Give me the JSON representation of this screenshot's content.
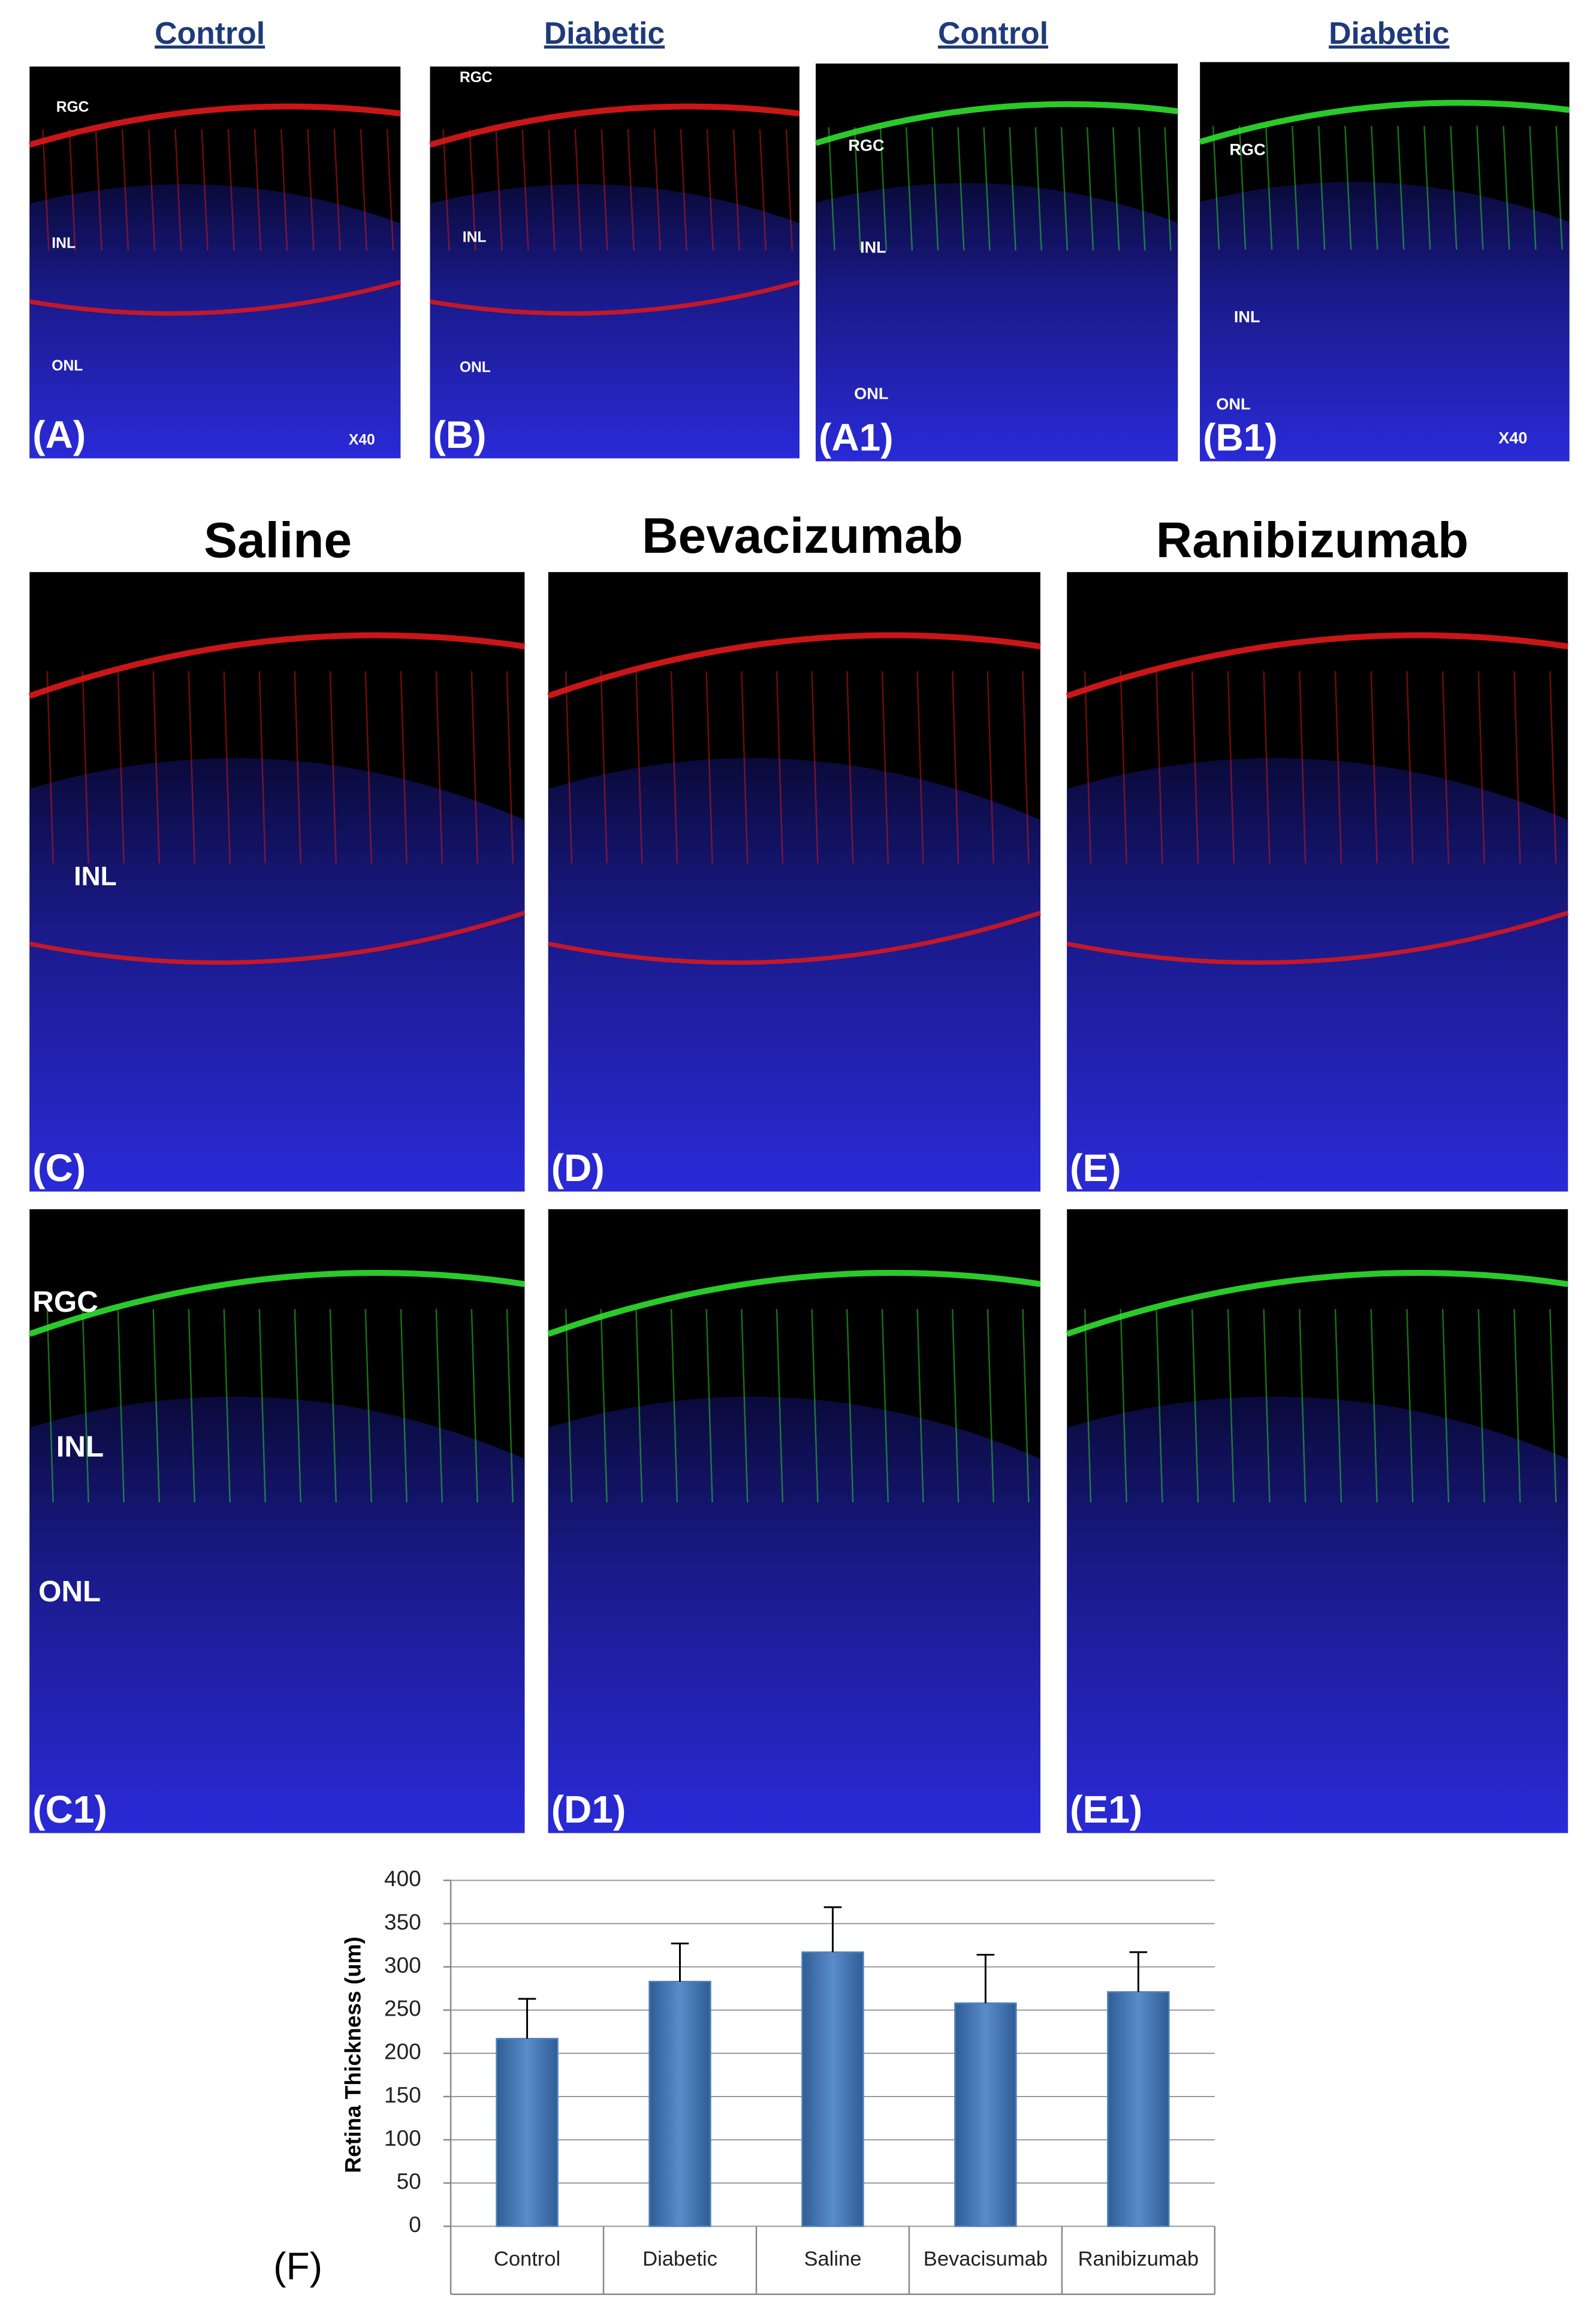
{
  "headers_top": [
    "Control",
    "Diabetic",
    "Control",
    "Diabetic"
  ],
  "headers_treatment": [
    "Saline",
    "Bevacizumab",
    "Ranibizumab"
  ],
  "panels": [
    {
      "label": "(A)",
      "annotations": [
        "RGC",
        "INL",
        "ONL",
        "X40"
      ]
    },
    {
      "label": "(B)",
      "annotations": [
        "RGC",
        "INL",
        "ONL"
      ]
    },
    {
      "label": "(A1)",
      "annotations": [
        "RGC",
        "INL",
        "ONL"
      ]
    },
    {
      "label": "(B1)",
      "annotations": [
        "RGC",
        "INL",
        "ONL",
        "X40"
      ]
    },
    {
      "label": "(C)",
      "annotations": [
        "INL"
      ]
    },
    {
      "label": "(D)",
      "annotations": []
    },
    {
      "label": "(E)",
      "annotations": []
    },
    {
      "label": "(C1)",
      "annotations": [
        "RGC",
        "INL",
        "ONL"
      ]
    },
    {
      "label": "(D1)",
      "annotations": []
    },
    {
      "label": "(E1)",
      "annotations": []
    }
  ],
  "chart_data": {
    "type": "bar",
    "panel_label": "(F)",
    "y_label": "Retina Thickness  (um)",
    "categories": [
      "Control",
      "Diabetic",
      "Saline",
      "Bevacisumab",
      "Ranibizumab"
    ],
    "values": [
      217,
      283,
      317,
      258,
      271
    ],
    "errors": [
      46,
      44,
      52,
      56,
      46
    ],
    "color": "#4f81bd",
    "ylim": [
      0,
      400
    ],
    "yticks": [
      0,
      50,
      100,
      150,
      200,
      250,
      300,
      350,
      400
    ],
    "grid": true
  }
}
